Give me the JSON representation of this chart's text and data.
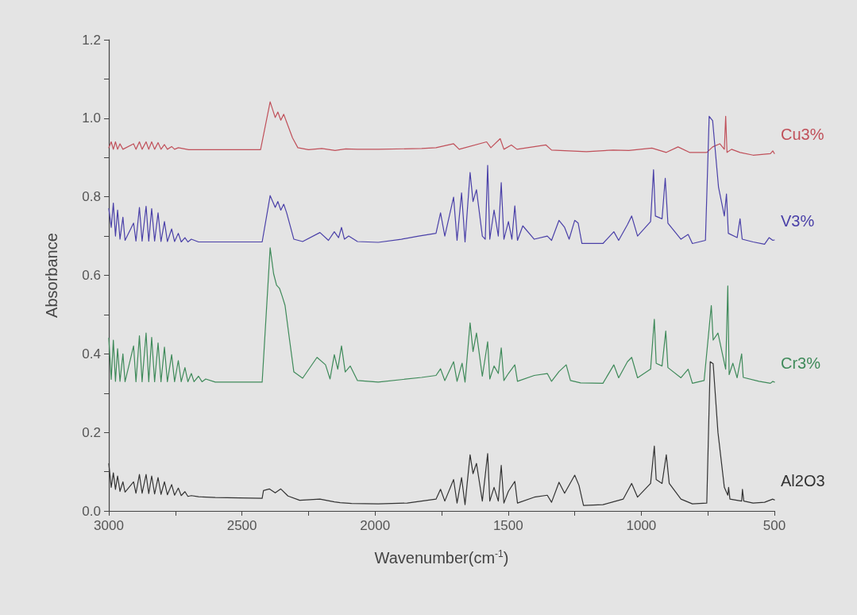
{
  "chart_data": {
    "type": "line",
    "xlabel": "Wavenumber(cm$^{-1}$)",
    "ylabel": "Absorbance",
    "xlim": [
      3000,
      500
    ],
    "ylim": [
      0,
      1.2
    ],
    "xticks": [
      {
        "value": 3000,
        "label": "3000"
      },
      {
        "value": 2750,
        "label": null
      },
      {
        "value": 2500,
        "label": "2500"
      },
      {
        "value": 2250,
        "label": null
      },
      {
        "value": 2000,
        "label": "2000"
      },
      {
        "value": 1750,
        "label": null
      },
      {
        "value": 1500,
        "label": "1500"
      },
      {
        "value": 1250,
        "label": null
      },
      {
        "value": 1000,
        "label": "1000"
      },
      {
        "value": 750,
        "label": null
      },
      {
        "value": 500,
        "label": "500"
      }
    ],
    "yticks": [
      {
        "value": 0,
        "label": "0.0"
      },
      {
        "value": 0.1,
        "label": null
      },
      {
        "value": 0.2,
        "label": "0.2"
      },
      {
        "value": 0.3,
        "label": null
      },
      {
        "value": 0.4,
        "label": "0.4"
      },
      {
        "value": 0.5,
        "label": null
      },
      {
        "value": 0.6,
        "label": "0.6"
      },
      {
        "value": 0.7,
        "label": null
      },
      {
        "value": 0.8,
        "label": "0.8"
      },
      {
        "value": 0.9,
        "label": null
      },
      {
        "value": 1.0,
        "label": "1.0"
      },
      {
        "value": 1.1,
        "label": null
      },
      {
        "value": 1.2,
        "label": "1.2"
      }
    ],
    "grid": false,
    "legend": false,
    "marker": "none",
    "line_style": "solid",
    "series": [
      {
        "name": "Cu3%",
        "color": "#c0505a",
        "x": [
          3000,
          2991,
          2983,
          2975,
          2967,
          2958,
          2947,
          2907,
          2898,
          2885,
          2875,
          2860,
          2850,
          2839,
          2828,
          2815,
          2804,
          2791,
          2780,
          2764,
          2753,
          2739,
          2700,
          2430,
          2394,
          2375,
          2365,
          2354,
          2343,
          2332,
          2310,
          2290,
          2250,
          2200,
          2150,
          2110,
          2066,
          1988,
          1825,
          1771,
          1705,
          1684,
          1581,
          1565,
          1530,
          1516,
          1488,
          1467,
          1358,
          1337,
          1206,
          1106,
          1047,
          960,
          906,
          862,
          819,
          754,
          732,
          705,
          688,
          683,
          678,
          661,
          629,
          580,
          515,
          506,
          500
        ],
        "values": [
          0.925,
          0.94,
          0.921,
          0.94,
          0.921,
          0.935,
          0.921,
          0.935,
          0.921,
          0.94,
          0.921,
          0.94,
          0.921,
          0.94,
          0.921,
          0.938,
          0.921,
          0.933,
          0.921,
          0.928,
          0.921,
          0.925,
          0.92,
          0.92,
          1.042,
          1.002,
          1.016,
          0.995,
          1.01,
          0.99,
          0.95,
          0.925,
          0.92,
          0.923,
          0.918,
          0.922,
          0.921,
          0.921,
          0.923,
          0.925,
          0.935,
          0.921,
          0.94,
          0.925,
          0.948,
          0.921,
          0.932,
          0.921,
          0.932,
          0.919,
          0.915,
          0.919,
          0.918,
          0.924,
          0.913,
          0.927,
          0.913,
          0.913,
          0.927,
          0.935,
          0.921,
          1.005,
          0.913,
          0.921,
          0.913,
          0.906,
          0.91,
          0.917,
          0.91
        ]
      },
      {
        "name": "V3%",
        "color": "#4a40a8",
        "x": [
          3000,
          2991,
          2983,
          2975,
          2967,
          2958,
          2947,
          2939,
          2907,
          2898,
          2885,
          2875,
          2860,
          2850,
          2839,
          2828,
          2815,
          2804,
          2791,
          2780,
          2764,
          2753,
          2739,
          2728,
          2714,
          2703,
          2690,
          2663,
          2424,
          2394,
          2375,
          2365,
          2354,
          2343,
          2332,
          2305,
          2272,
          2207,
          2175,
          2153,
          2137,
          2126,
          2115,
          2099,
          2066,
          1988,
          1901,
          1836,
          1771,
          1754,
          1738,
          1705,
          1692,
          1675,
          1662,
          1643,
          1632,
          1619,
          1597,
          1586,
          1577,
          1569,
          1553,
          1537,
          1526,
          1516,
          1499,
          1486,
          1475,
          1465,
          1445,
          1402,
          1353,
          1337,
          1309,
          1288,
          1271,
          1250,
          1237,
          1223,
          1144,
          1103,
          1085,
          1052,
          1036,
          1014,
          965,
          954,
          947,
          922,
          910,
          900,
          851,
          824,
          808,
          759,
          745,
          732,
          710,
          688,
          680,
          673,
          640,
          629,
          621,
          580,
          537,
          520,
          506,
          500
        ],
        "values": [
          0.77,
          0.722,
          0.784,
          0.7,
          0.766,
          0.692,
          0.748,
          0.689,
          0.733,
          0.687,
          0.773,
          0.687,
          0.776,
          0.687,
          0.77,
          0.687,
          0.759,
          0.686,
          0.737,
          0.686,
          0.718,
          0.686,
          0.707,
          0.685,
          0.696,
          0.685,
          0.692,
          0.685,
          0.685,
          0.803,
          0.773,
          0.788,
          0.766,
          0.781,
          0.759,
          0.692,
          0.686,
          0.709,
          0.689,
          0.711,
          0.696,
          0.722,
          0.692,
          0.7,
          0.686,
          0.684,
          0.692,
          0.7,
          0.707,
          0.759,
          0.7,
          0.799,
          0.689,
          0.81,
          0.685,
          0.862,
          0.788,
          0.818,
          0.7,
          0.692,
          0.88,
          0.692,
          0.766,
          0.7,
          0.836,
          0.692,
          0.737,
          0.692,
          0.777,
          0.689,
          0.726,
          0.692,
          0.7,
          0.689,
          0.74,
          0.722,
          0.692,
          0.74,
          0.733,
          0.681,
          0.681,
          0.711,
          0.689,
          0.729,
          0.751,
          0.7,
          0.737,
          0.869,
          0.751,
          0.744,
          0.847,
          0.733,
          0.692,
          0.704,
          0.681,
          0.689,
          1.005,
          0.994,
          0.825,
          0.751,
          0.807,
          0.707,
          0.696,
          0.744,
          0.692,
          0.685,
          0.679,
          0.696,
          0.689,
          0.69
        ]
      },
      {
        "name": "Cr3%",
        "color": "#3f8a5a",
        "x": [
          3000,
          2991,
          2983,
          2975,
          2967,
          2958,
          2947,
          2939,
          2907,
          2898,
          2885,
          2875,
          2860,
          2850,
          2839,
          2828,
          2815,
          2804,
          2791,
          2780,
          2764,
          2753,
          2739,
          2728,
          2714,
          2703,
          2690,
          2680,
          2663,
          2650,
          2636,
          2600,
          2424,
          2394,
          2381,
          2370,
          2359,
          2348,
          2338,
          2321,
          2305,
          2272,
          2218,
          2186,
          2169,
          2153,
          2140,
          2126,
          2112,
          2093,
          2066,
          1988,
          1825,
          1771,
          1754,
          1738,
          1705,
          1692,
          1673,
          1662,
          1643,
          1632,
          1619,
          1597,
          1577,
          1569,
          1553,
          1537,
          1526,
          1516,
          1499,
          1475,
          1465,
          1402,
          1353,
          1337,
          1309,
          1282,
          1266,
          1228,
          1144,
          1103,
          1085,
          1052,
          1036,
          1014,
          965,
          951,
          944,
          922,
          908,
          900,
          851,
          824,
          808,
          764,
          737,
          730,
          712,
          683,
          675,
          670,
          656,
          640,
          623,
          617,
          558,
          515,
          506,
          500
        ],
        "values": [
          0.44,
          0.335,
          0.435,
          0.33,
          0.413,
          0.33,
          0.4,
          0.329,
          0.42,
          0.329,
          0.446,
          0.329,
          0.453,
          0.329,
          0.442,
          0.329,
          0.428,
          0.329,
          0.417,
          0.329,
          0.398,
          0.329,
          0.383,
          0.329,
          0.365,
          0.329,
          0.35,
          0.329,
          0.343,
          0.329,
          0.336,
          0.328,
          0.328,
          0.67,
          0.604,
          0.575,
          0.567,
          0.545,
          0.523,
          0.435,
          0.354,
          0.338,
          0.391,
          0.372,
          0.336,
          0.398,
          0.361,
          0.42,
          0.354,
          0.369,
          0.332,
          0.328,
          0.34,
          0.345,
          0.362,
          0.332,
          0.38,
          0.33,
          0.376,
          0.328,
          0.479,
          0.406,
          0.453,
          0.343,
          0.431,
          0.336,
          0.369,
          0.35,
          0.415,
          0.332,
          0.35,
          0.372,
          0.33,
          0.345,
          0.35,
          0.33,
          0.355,
          0.372,
          0.332,
          0.326,
          0.325,
          0.372,
          0.339,
          0.38,
          0.391,
          0.339,
          0.361,
          0.488,
          0.376,
          0.369,
          0.458,
          0.365,
          0.339,
          0.361,
          0.325,
          0.332,
          0.523,
          0.435,
          0.453,
          0.361,
          0.573,
          0.347,
          0.376,
          0.339,
          0.4,
          0.34,
          0.33,
          0.325,
          0.33,
          0.328
        ]
      },
      {
        "name": "Al2O3",
        "color": "#333333",
        "x": [
          3000,
          2991,
          2983,
          2975,
          2967,
          2958,
          2947,
          2939,
          2907,
          2898,
          2885,
          2875,
          2860,
          2850,
          2839,
          2828,
          2815,
          2804,
          2791,
          2780,
          2764,
          2753,
          2739,
          2728,
          2714,
          2703,
          2690,
          2663,
          2600,
          2424,
          2419,
          2397,
          2375,
          2354,
          2327,
          2283,
          2207,
          2153,
          2131,
          2088,
          1988,
          1879,
          1771,
          1754,
          1738,
          1705,
          1692,
          1675,
          1662,
          1643,
          1632,
          1619,
          1597,
          1577,
          1569,
          1553,
          1537,
          1526,
          1516,
          1499,
          1475,
          1465,
          1402,
          1353,
          1337,
          1309,
          1288,
          1250,
          1234,
          1217,
          1144,
          1068,
          1052,
          1036,
          1014,
          965,
          951,
          944,
          922,
          906,
          895,
          851,
          808,
          754,
          741,
          730,
          712,
          688,
          675,
          672,
          667,
          623,
          620,
          615,
          580,
          537,
          506,
          500
        ],
        "values": [
          0.12,
          0.06,
          0.097,
          0.055,
          0.089,
          0.05,
          0.074,
          0.048,
          0.074,
          0.045,
          0.093,
          0.045,
          0.093,
          0.044,
          0.089,
          0.043,
          0.085,
          0.042,
          0.074,
          0.041,
          0.067,
          0.04,
          0.058,
          0.039,
          0.049,
          0.037,
          0.039,
          0.036,
          0.034,
          0.032,
          0.052,
          0.056,
          0.046,
          0.056,
          0.038,
          0.027,
          0.03,
          0.023,
          0.021,
          0.019,
          0.018,
          0.02,
          0.03,
          0.055,
          0.025,
          0.08,
          0.02,
          0.085,
          0.016,
          0.143,
          0.095,
          0.121,
          0.025,
          0.146,
          0.025,
          0.06,
          0.025,
          0.116,
          0.02,
          0.05,
          0.075,
          0.02,
          0.035,
          0.04,
          0.022,
          0.073,
          0.045,
          0.091,
          0.065,
          0.014,
          0.016,
          0.03,
          0.05,
          0.07,
          0.035,
          0.07,
          0.165,
          0.08,
          0.07,
          0.143,
          0.07,
          0.03,
          0.018,
          0.02,
          0.38,
          0.375,
          0.2,
          0.06,
          0.04,
          0.06,
          0.03,
          0.025,
          0.055,
          0.025,
          0.02,
          0.022,
          0.03,
          0.028
        ]
      }
    ]
  }
}
